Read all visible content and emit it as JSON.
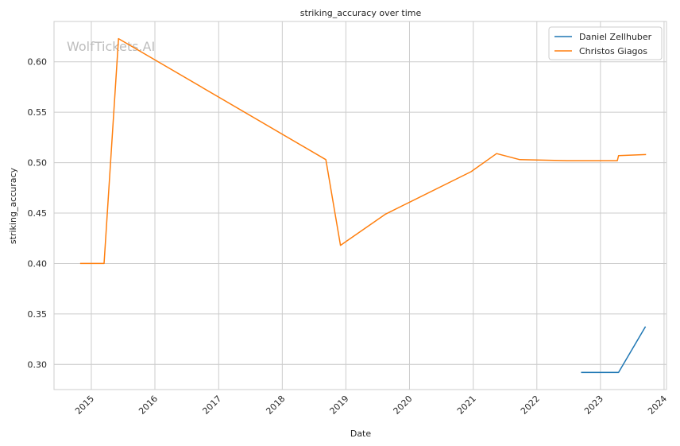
{
  "watermark": "WolfTickets.AI",
  "chart_data": {
    "type": "line",
    "title": "striking_accuracy over time",
    "xlabel": "Date",
    "ylabel": "striking_accuracy",
    "x_type": "date",
    "xlim": [
      "2014-06-01",
      "2024-01-15"
    ],
    "ylim": [
      0.275,
      0.64
    ],
    "x_ticks": [
      "2015",
      "2016",
      "2017",
      "2018",
      "2019",
      "2020",
      "2021",
      "2022",
      "2023",
      "2024"
    ],
    "y_ticks": [
      "0.30",
      "0.35",
      "0.40",
      "0.45",
      "0.50",
      "0.55",
      "0.60"
    ],
    "grid": true,
    "legend_position": "top-right",
    "series": [
      {
        "name": "Daniel Zellhuber",
        "color": "#1f77b4",
        "x": [
          "2022-09-15",
          "2023-04-15",
          "2023-09-15"
        ],
        "y": [
          0.292,
          0.292,
          0.337
        ]
      },
      {
        "name": "Christos Giagos",
        "color": "#ff7f0e",
        "x": [
          "2014-11-01",
          "2015-03-15",
          "2015-06-06",
          "2018-09-08",
          "2018-12-01",
          "2019-08-17",
          "2020-12-19",
          "2021-05-15",
          "2021-09-25",
          "2022-06-25",
          "2023-04-08",
          "2023-04-15",
          "2023-09-16"
        ],
        "y": [
          0.4,
          0.4,
          0.623,
          0.503,
          0.418,
          0.449,
          0.491,
          0.509,
          0.503,
          0.502,
          0.502,
          0.507,
          0.508
        ]
      }
    ]
  }
}
